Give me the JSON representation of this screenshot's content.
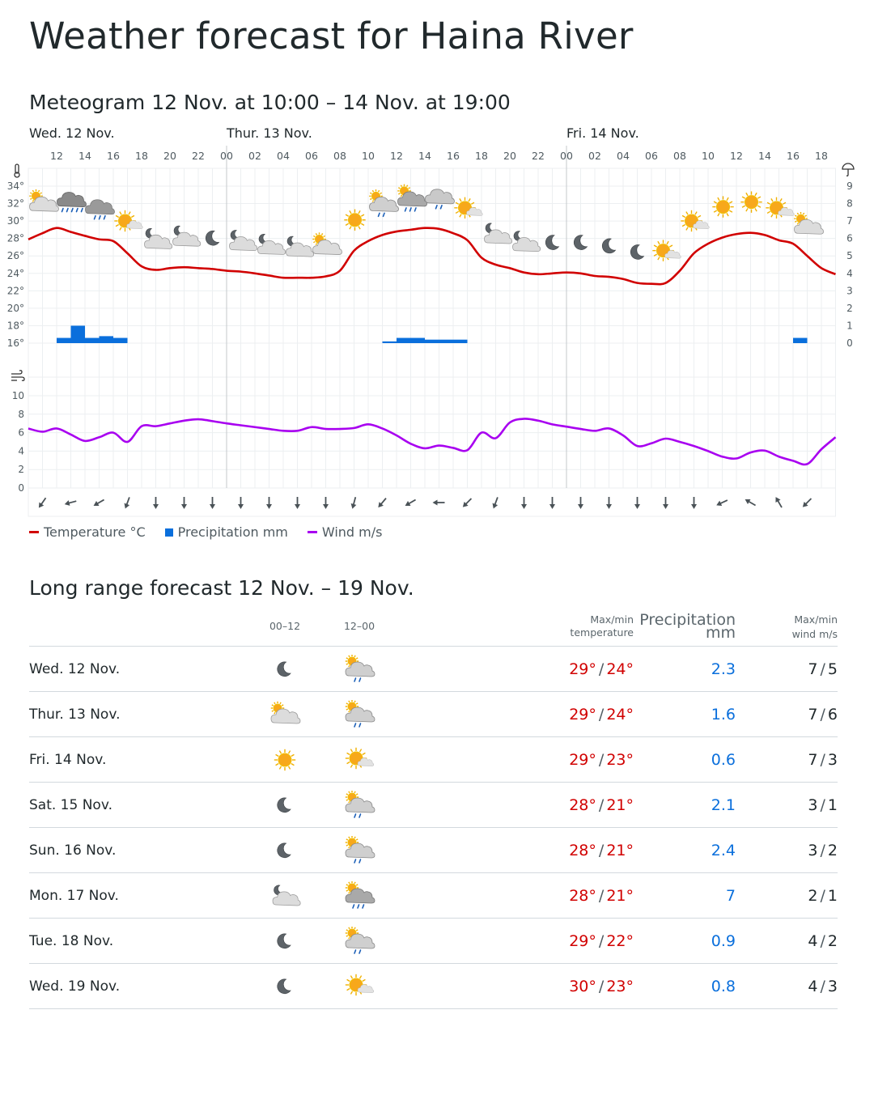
{
  "title": "Weather forecast for Haina River",
  "meteogram": {
    "title": "Meteogram 12 Nov. at 10:00 – 14 Nov. at 19:00",
    "day_labels": [
      "Wed. 12 Nov.",
      "Thur. 13 Nov.",
      "Fri. 14 Nov."
    ],
    "hour_labels": [
      "12",
      "14",
      "16",
      "18",
      "20",
      "22",
      "00",
      "02",
      "04",
      "06",
      "08",
      "10",
      "12",
      "14",
      "16",
      "18",
      "20",
      "22",
      "00",
      "02",
      "04",
      "06",
      "08",
      "10",
      "12",
      "14",
      "16",
      "18"
    ],
    "temp_axis_labels": [
      "34°",
      "32°",
      "30°",
      "28°",
      "26°",
      "24°",
      "22°",
      "20°",
      "18°",
      "16°"
    ],
    "precip_axis_labels": [
      "9",
      "8",
      "7",
      "6",
      "5",
      "4",
      "3",
      "2",
      "1",
      "0"
    ],
    "wind_axis_labels": [
      "10",
      "8",
      "6",
      "4",
      "2",
      "0"
    ],
    "legend": {
      "temperature": "Temperature °C",
      "precipitation": "Precipitation mm",
      "wind": "Wind m/s"
    },
    "colors": {
      "temperature": "#d10000",
      "precipitation": "#0a6fdc",
      "wind": "#a800f0"
    }
  },
  "chart_data": {
    "type": "line",
    "x_start": "12 Nov. 10:00",
    "x_end": "14 Nov. 19:00",
    "x_unit": "hour",
    "temp_range": [
      16,
      34
    ],
    "precip_range": [
      0,
      9
    ],
    "wind_range": [
      0,
      10
    ],
    "temperature": [
      27.9,
      28.6,
      29.2,
      28.75,
      28.3,
      27.9,
      27.7,
      26.3,
      24.8,
      24.4,
      24.6,
      24.7,
      24.6,
      24.5,
      24.3,
      24.2,
      24.0,
      23.75,
      23.5,
      23.5,
      23.5,
      23.65,
      24.3,
      26.6,
      27.7,
      28.4,
      28.8,
      29.0,
      29.2,
      29.1,
      28.6,
      27.8,
      25.8,
      25.0,
      24.6,
      24.1,
      23.9,
      24.0,
      24.1,
      24.0,
      23.7,
      23.6,
      23.35,
      22.9,
      22.8,
      22.9,
      24.3,
      26.3,
      27.4,
      28.1,
      28.5,
      28.65,
      28.4,
      27.8,
      27.4,
      26.0,
      24.6,
      23.9
    ],
    "wind": [
      6.45,
      6.1,
      6.45,
      5.8,
      5.1,
      5.5,
      6.0,
      5.0,
      6.7,
      6.7,
      7.0,
      7.3,
      7.45,
      7.25,
      7.0,
      6.8,
      6.6,
      6.4,
      6.2,
      6.2,
      6.6,
      6.4,
      6.4,
      6.5,
      6.9,
      6.45,
      5.7,
      4.8,
      4.3,
      4.6,
      4.35,
      4.1,
      6.0,
      5.4,
      7.1,
      7.5,
      7.3,
      6.9,
      6.65,
      6.4,
      6.2,
      6.45,
      5.7,
      4.55,
      4.85,
      5.35,
      5.0,
      4.55,
      4.0,
      3.4,
      3.2,
      3.85,
      4.05,
      3.4,
      2.95,
      2.6,
      4.2,
      5.5
    ],
    "precipitation": [
      {
        "from_hour": 2,
        "mm": 0.3
      },
      {
        "from_hour": 3,
        "mm": 1.0
      },
      {
        "from_hour": 4,
        "mm": 0.3
      },
      {
        "from_hour": 5,
        "mm": 0.4
      },
      {
        "from_hour": 6,
        "mm": 0.3
      },
      {
        "from_hour": 25,
        "mm": 0.1
      },
      {
        "from_hour": 26,
        "mm": 0.3
      },
      {
        "from_hour": 27,
        "mm": 0.3
      },
      {
        "from_hour": 28,
        "mm": 0.2
      },
      {
        "from_hour": 29,
        "mm": 0.2
      },
      {
        "from_hour": 30,
        "mm": 0.2
      },
      {
        "from_hour": 54,
        "mm": 0.3
      }
    ],
    "symbols": [
      "partly-cloudy-day",
      "heavy-rain",
      "rain",
      "fair-day",
      "partly-cloudy-night",
      "partly-cloudy-night",
      "clear-night",
      "partly-cloudy-night",
      "partly-cloudy-night",
      "partly-cloudy-night",
      "partly-cloudy-day",
      "clear-day",
      "partly-cloudy-day-rain",
      "partly-cloudy-day-rain-dark",
      "rain-light",
      "fair-day",
      "partly-cloudy-night",
      "partly-cloudy-night",
      "clear-night",
      "clear-night",
      "clear-night",
      "clear-night",
      "fair-day",
      "fair-day",
      "clear-day",
      "clear-day",
      "fair-day",
      "partly-cloudy-day"
    ],
    "wind_direction_arrows_deg": [
      215,
      255,
      240,
      200,
      180,
      180,
      180,
      180,
      180,
      180,
      180,
      195,
      220,
      240,
      270,
      225,
      200,
      180,
      180,
      180,
      180,
      180,
      180,
      180,
      245,
      300,
      330,
      225
    ]
  },
  "long_range": {
    "title": "Long range forecast 12 Nov. – 19 Nov.",
    "headers": {
      "p1": "00–12",
      "p2": "12–00",
      "temp": [
        "Max/min",
        "temperature"
      ],
      "precip": [
        "Precipitation",
        "mm"
      ],
      "wind": [
        "Max/min",
        "wind m/s"
      ]
    },
    "rows": [
      {
        "day": "Wed. 12 Nov.",
        "icon1": "clear-night",
        "icon2": "partly-cloudy-day-rain",
        "tmax": "29°",
        "tmin": "24°",
        "precip": "2.3",
        "wmax": "7",
        "wmin": "5"
      },
      {
        "day": "Thur. 13 Nov.",
        "icon1": "partly-cloudy-day",
        "icon2": "partly-cloudy-day-rain",
        "tmax": "29°",
        "tmin": "24°",
        "precip": "1.6",
        "wmax": "7",
        "wmin": "6"
      },
      {
        "day": "Fri. 14 Nov.",
        "icon1": "clear-day",
        "icon2": "fair-day",
        "tmax": "29°",
        "tmin": "23°",
        "precip": "0.6",
        "wmax": "7",
        "wmin": "3"
      },
      {
        "day": "Sat. 15 Nov.",
        "icon1": "clear-night",
        "icon2": "partly-cloudy-day-rain",
        "tmax": "28°",
        "tmin": "21°",
        "precip": "2.1",
        "wmax": "3",
        "wmin": "1"
      },
      {
        "day": "Sun. 16 Nov.",
        "icon1": "clear-night",
        "icon2": "partly-cloudy-day-rain",
        "tmax": "28°",
        "tmin": "21°",
        "precip": "2.4",
        "wmax": "3",
        "wmin": "2"
      },
      {
        "day": "Mon. 17 Nov.",
        "icon1": "partly-cloudy-night",
        "icon2": "partly-cloudy-day-rain-dark",
        "tmax": "28°",
        "tmin": "21°",
        "precip": "7",
        "wmax": "2",
        "wmin": "1"
      },
      {
        "day": "Tue. 18 Nov.",
        "icon1": "clear-night",
        "icon2": "partly-cloudy-day-rain",
        "tmax": "29°",
        "tmin": "22°",
        "precip": "0.9",
        "wmax": "4",
        "wmin": "2"
      },
      {
        "day": "Wed. 19 Nov.",
        "icon1": "clear-night",
        "icon2": "fair-day",
        "tmax": "30°",
        "tmin": "23°",
        "precip": "0.8",
        "wmax": "4",
        "wmin": "3"
      }
    ]
  }
}
